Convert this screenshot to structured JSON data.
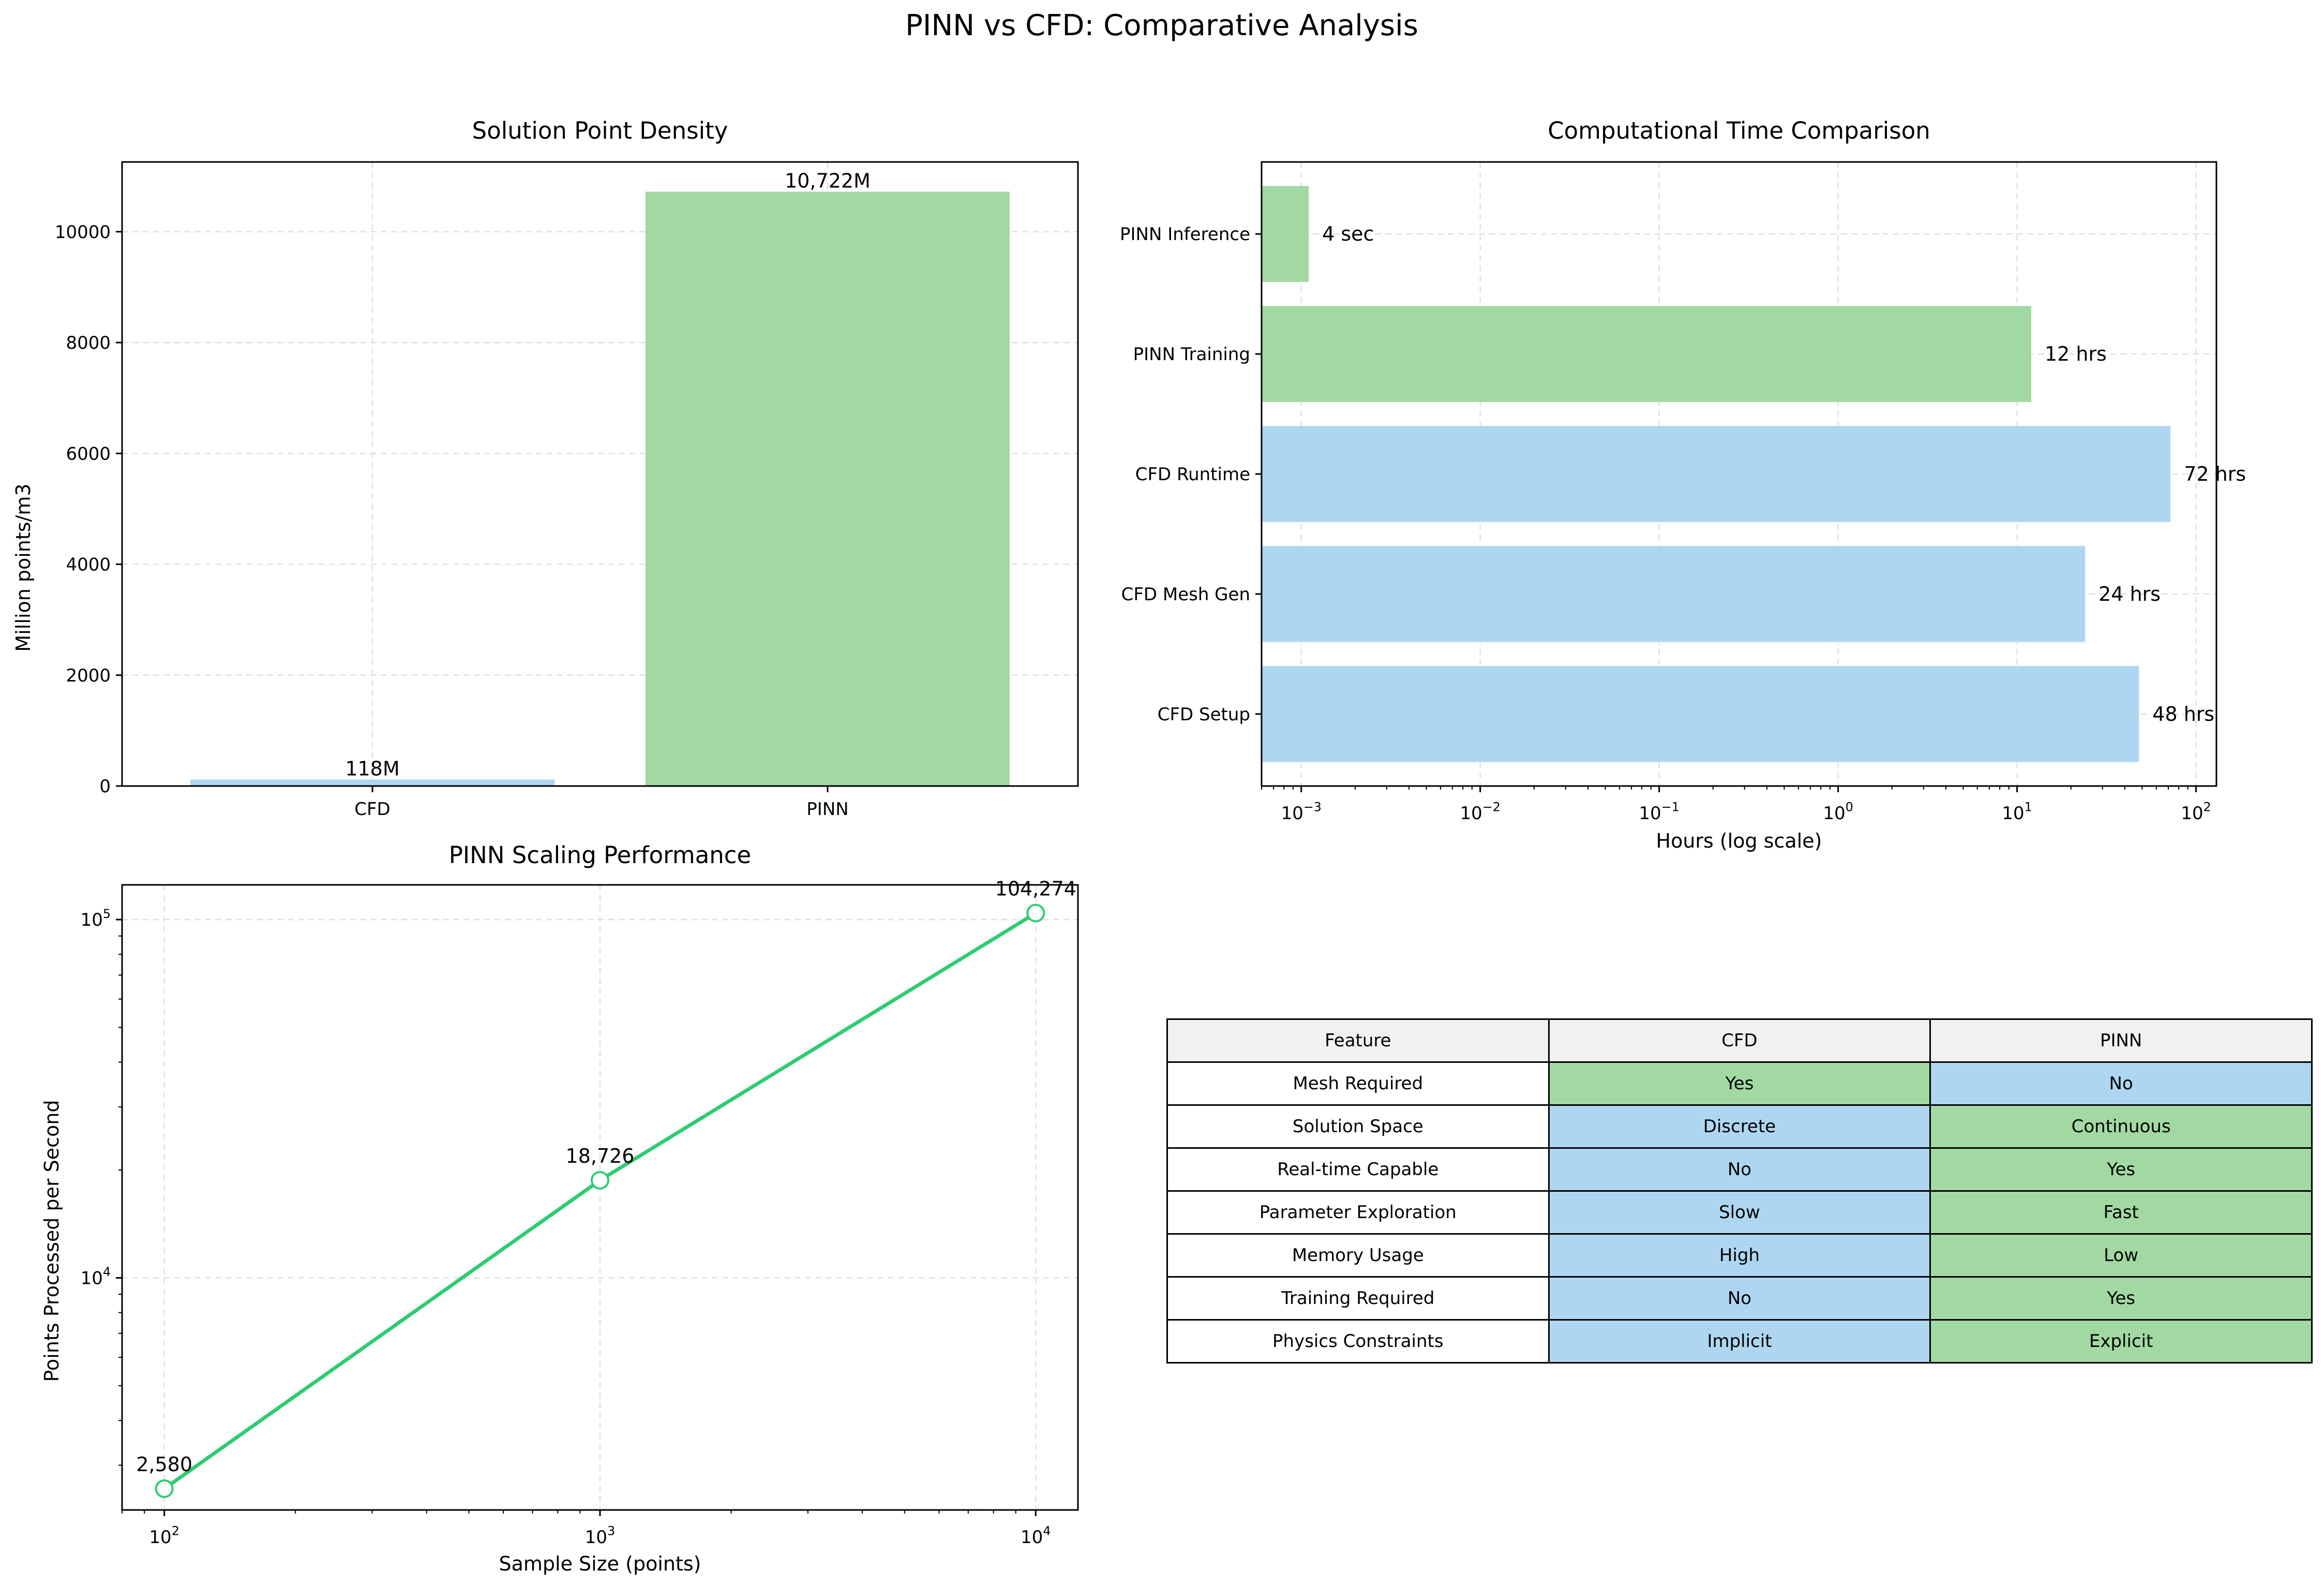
{
  "figure": {
    "title": "PINN vs CFD: Comparative Analysis"
  },
  "colors": {
    "cfd": "#aed6f1",
    "pinn": "#a2d9a2",
    "line": "#2ecc71",
    "header_bg": "#f1f1f2"
  },
  "chart_data": [
    {
      "id": "density",
      "type": "bar",
      "title": "Solution Point Density",
      "xlabel": "",
      "ylabel": "Million points/m3",
      "categories": [
        "CFD",
        "PINN"
      ],
      "values": [
        118,
        10722
      ],
      "value_labels": [
        "118M",
        "10,722M"
      ],
      "ylim": [
        0,
        11258
      ],
      "yticks": [
        0,
        2000,
        4000,
        6000,
        8000,
        10000
      ],
      "ytick_labels": [
        "0",
        "2000",
        "4000",
        "6000",
        "8000",
        "10000"
      ],
      "grid": true
    },
    {
      "id": "time",
      "type": "bar",
      "orientation": "horizontal",
      "title": "Computational Time Comparison",
      "xlabel": "Hours (log scale)",
      "ylabel": "",
      "x_scale": "log",
      "categories": [
        "CFD Setup",
        "CFD Mesh Gen",
        "CFD Runtime",
        "PINN Training",
        "PINN Inference"
      ],
      "values": [
        48,
        24,
        72,
        12,
        0.0011
      ],
      "value_labels": [
        "48 hrs",
        "24 hrs",
        "72 hrs",
        "12 hrs",
        "4 sec"
      ],
      "groups": [
        "cfd",
        "cfd",
        "cfd",
        "pinn",
        "pinn"
      ],
      "xlim": [
        0.0006,
        130
      ],
      "xticks": [
        0.001,
        0.01,
        0.1,
        1,
        10,
        100
      ],
      "xtick_labels": [
        [
          "10",
          "−3"
        ],
        [
          "10",
          "−2"
        ],
        [
          "10",
          "−1"
        ],
        [
          "10",
          "0"
        ],
        [
          "10",
          "1"
        ],
        [
          "10",
          "2"
        ]
      ],
      "grid": true
    },
    {
      "id": "scaling",
      "type": "line",
      "title": "PINN Scaling Performance",
      "xlabel": "Sample Size (points)",
      "ylabel": "Points Processed per Second",
      "x_scale": "log",
      "y_scale": "log",
      "x": [
        100,
        1000,
        10000
      ],
      "y": [
        2580,
        18726,
        104274
      ],
      "value_labels": [
        "2,580",
        "18,726",
        "104,274"
      ],
      "xlim": [
        80,
        12500
      ],
      "ylim": [
        2250,
        125000
      ],
      "xticks": [
        100,
        1000,
        10000
      ],
      "xtick_labels": [
        [
          "10",
          "2"
        ],
        [
          "10",
          "3"
        ],
        [
          "10",
          "4"
        ]
      ],
      "yticks": [
        10000,
        100000
      ],
      "ytick_labels": [
        [
          "10",
          "4"
        ],
        [
          "10",
          "5"
        ]
      ],
      "grid": true
    }
  ],
  "table": {
    "headers": [
      "Feature",
      "CFD",
      "PINN"
    ],
    "rows": [
      [
        "Mesh Required",
        "Yes",
        "No"
      ],
      [
        "Solution Space",
        "Discrete",
        "Continuous"
      ],
      [
        "Real-time Capable",
        "No",
        "Yes"
      ],
      [
        "Parameter Exploration",
        "Slow",
        "Fast"
      ],
      [
        "Memory Usage",
        "High",
        "Low"
      ],
      [
        "Training Required",
        "No",
        "Yes"
      ],
      [
        "Physics Constraints",
        "Implicit",
        "Explicit"
      ]
    ],
    "cell_colors": [
      [
        "pinn",
        "cfd"
      ],
      [
        "cfd",
        "pinn"
      ],
      [
        "cfd",
        "pinn"
      ],
      [
        "cfd",
        "pinn"
      ],
      [
        "cfd",
        "pinn"
      ],
      [
        "cfd",
        "pinn"
      ],
      [
        "cfd",
        "pinn"
      ]
    ]
  }
}
